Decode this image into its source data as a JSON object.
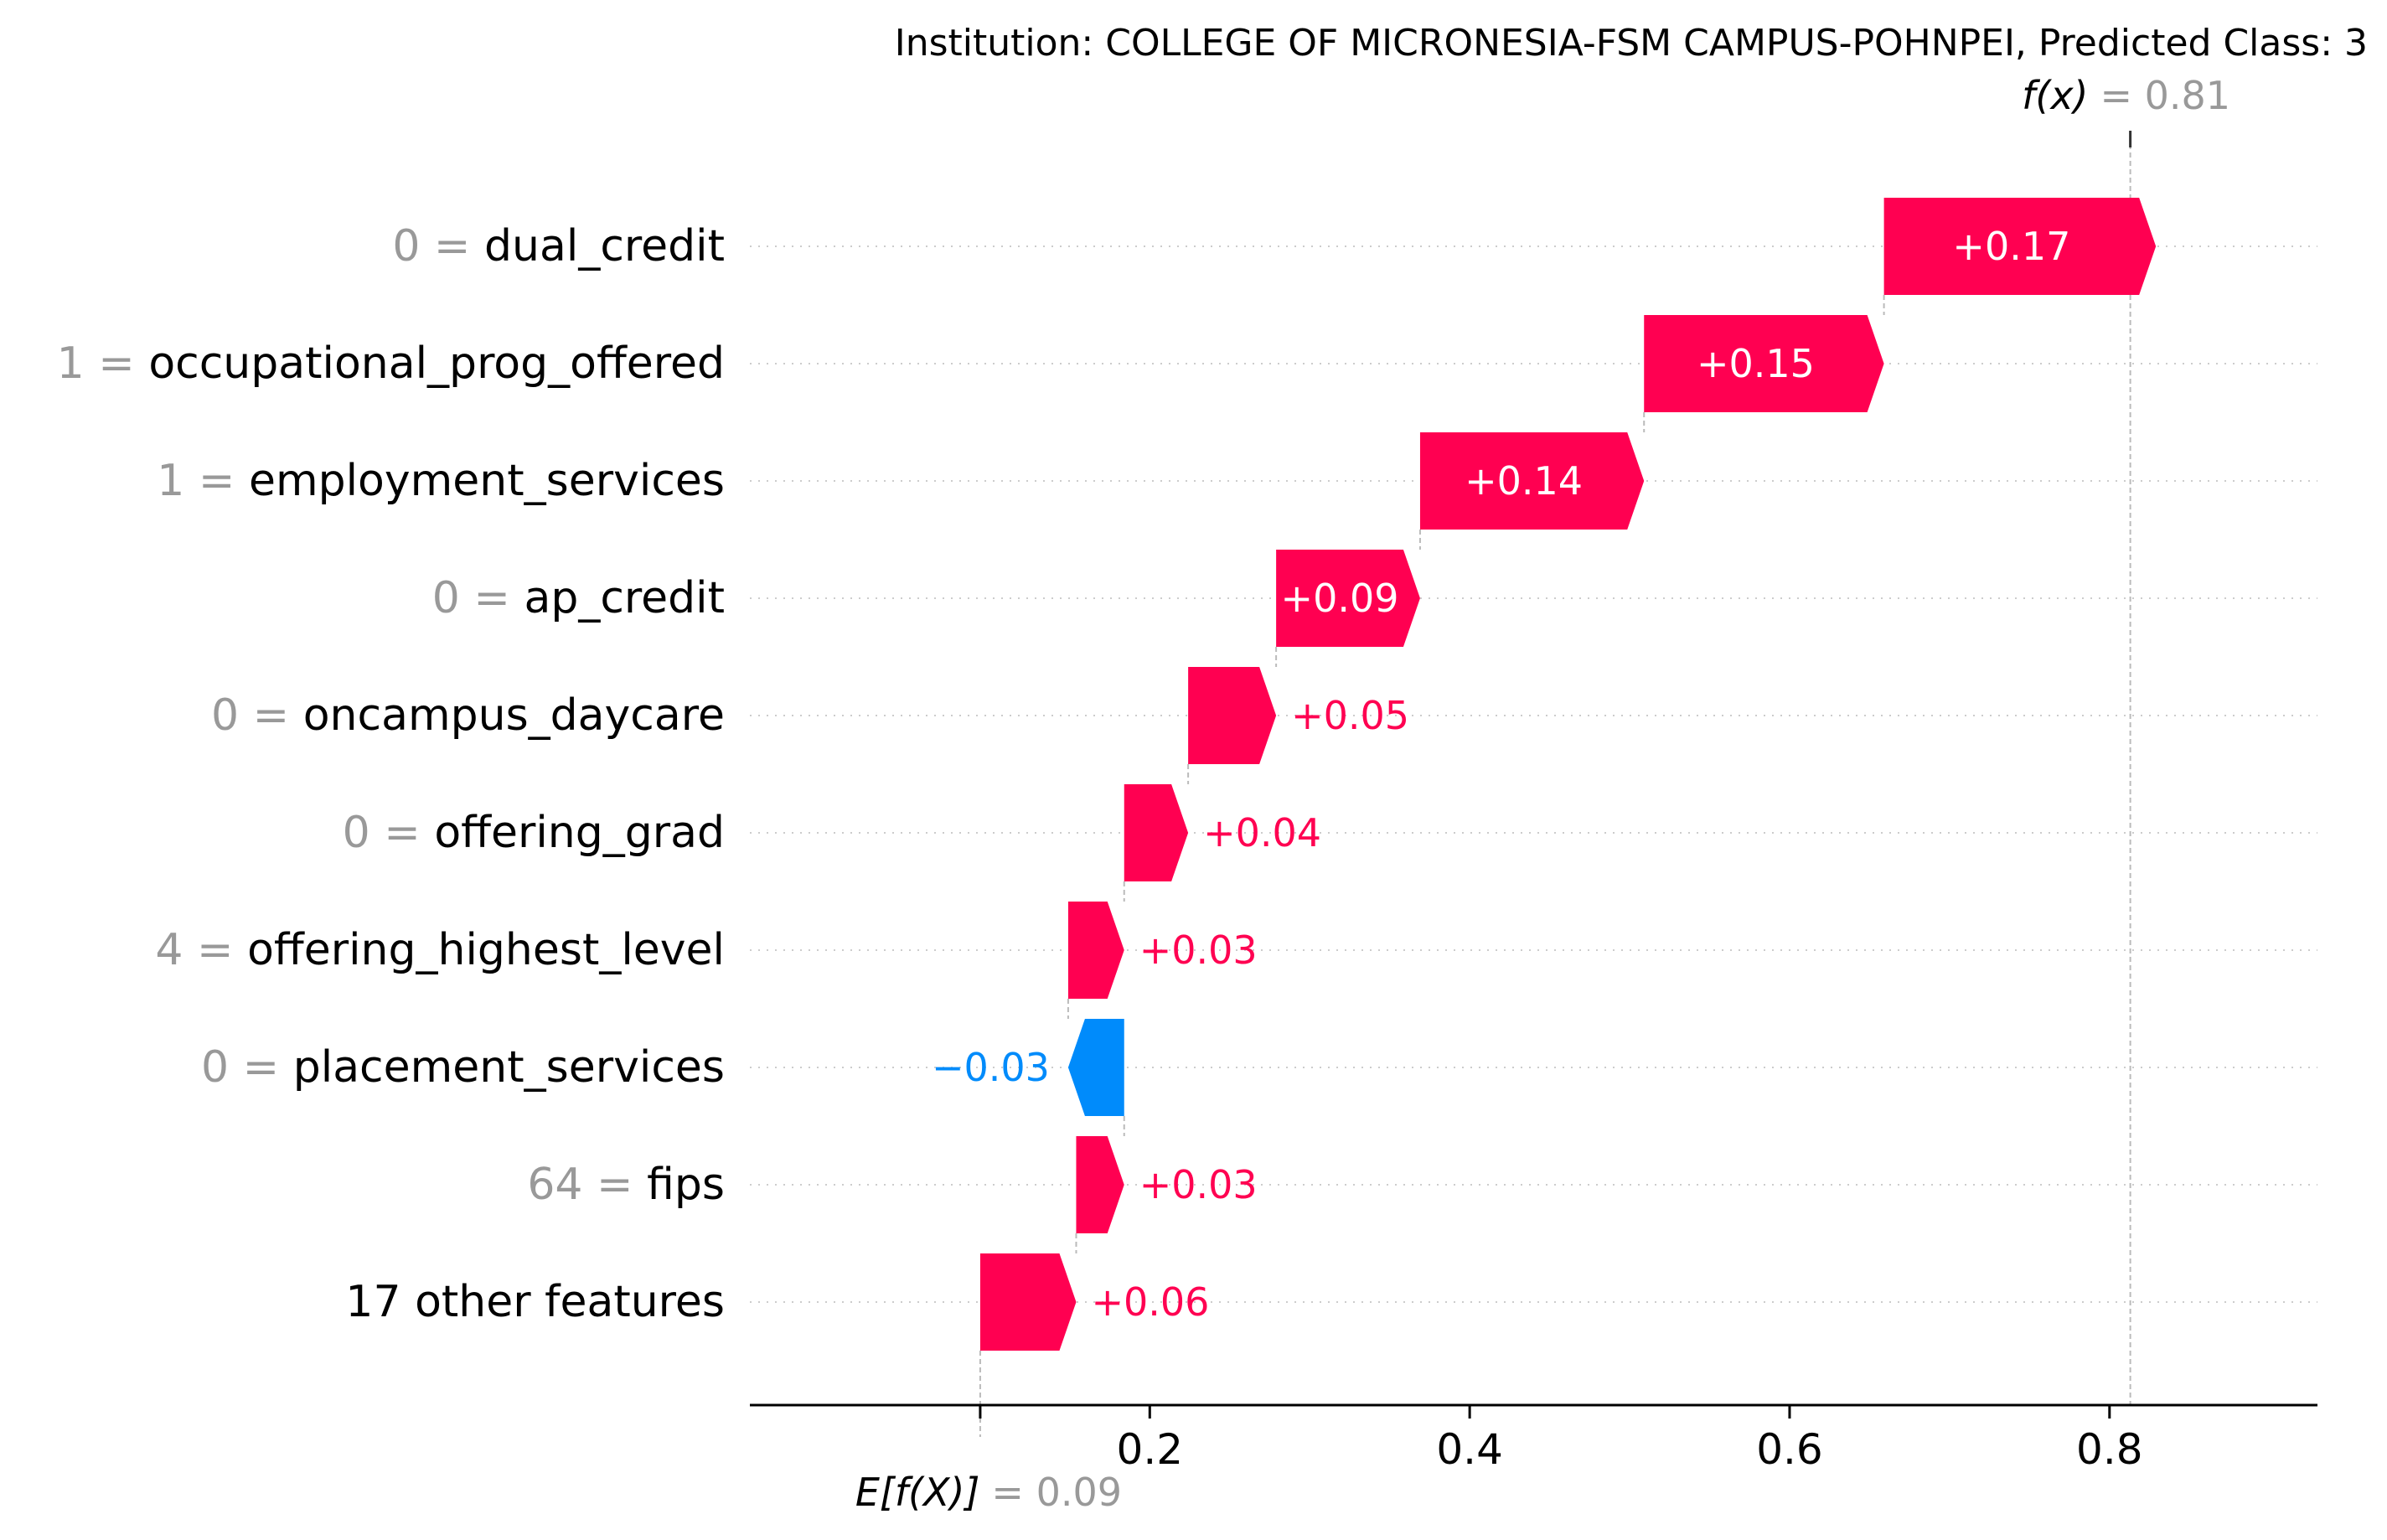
{
  "chart_data": {
    "type": "waterfall",
    "title": "Institution: COLLEGE OF MICRONESIA-FSM CAMPUS-POHNPEI, Predicted Class: 3",
    "base_value": 0.094,
    "base_label": "E[f(X)]",
    "base_value_text": "= 0.09",
    "output_value": 0.813,
    "output_label": "f(x)",
    "output_value_text": "= 0.81",
    "xlim": [
      -0.05,
      0.93
    ],
    "xticks": [
      0.2,
      0.4,
      0.6,
      0.8
    ],
    "xtick_labels": [
      "0.2",
      "0.4",
      "0.6",
      "0.8"
    ],
    "features": [
      {
        "value": "0",
        "name": "dual_credit",
        "contribution": 0.17,
        "label": "+0.17"
      },
      {
        "value": "1",
        "name": "occupational_prog_offered",
        "contribution": 0.15,
        "label": "+0.15"
      },
      {
        "value": "1",
        "name": "employment_services",
        "contribution": 0.14,
        "label": "+0.14"
      },
      {
        "value": "0",
        "name": "ap_credit",
        "contribution": 0.09,
        "label": "+0.09"
      },
      {
        "value": "0",
        "name": "oncampus_daycare",
        "contribution": 0.055,
        "label": "+0.05"
      },
      {
        "value": "0",
        "name": "offering_grad",
        "contribution": 0.04,
        "label": "+0.04"
      },
      {
        "value": "4",
        "name": "offering_highest_level",
        "contribution": 0.035,
        "label": "+0.03"
      },
      {
        "value": "0",
        "name": "placement_services",
        "contribution": -0.035,
        "label": "−0.03"
      },
      {
        "value": "64",
        "name": "fips",
        "contribution": 0.03,
        "label": "+0.03"
      },
      {
        "value": "",
        "name": "17 other features",
        "contribution": 0.06,
        "label": "+0.06"
      }
    ],
    "colors": {
      "positive": "#ff0051",
      "negative": "#008bfb",
      "feature_value": "#999999",
      "grid": "#cccccc"
    }
  }
}
